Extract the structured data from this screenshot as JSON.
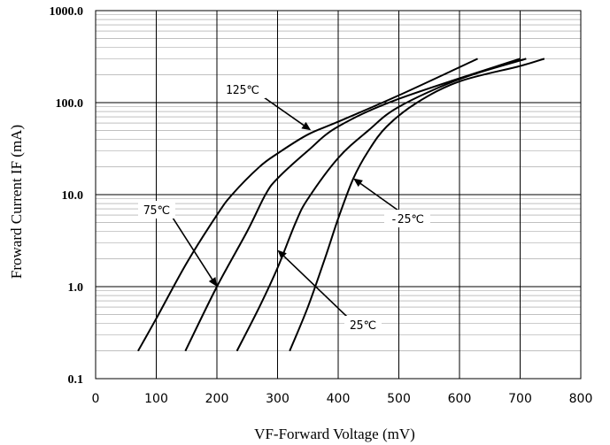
{
  "chart_data": {
    "type": "line",
    "title": "",
    "xlabel": "VF-Forward Voltage (mV)",
    "ylabel": "Froward Current IF (mA)",
    "xlim": [
      0,
      800
    ],
    "ylim": [
      0.1,
      1000
    ],
    "yscale": "log",
    "grid": true,
    "xticks": [
      0,
      100,
      200,
      300,
      400,
      500,
      600,
      700,
      800
    ],
    "xtick_labels": [
      "0",
      "100",
      "200",
      "300",
      "400",
      "500",
      "600",
      "700",
      "800"
    ],
    "yticks": [
      0.1,
      1,
      10,
      100,
      1000
    ],
    "ytick_labels": [
      "0.1",
      "1.0",
      "10.0",
      "100.0",
      "1000.0"
    ],
    "series": [
      {
        "name": "125°C",
        "x": [
          70,
          100,
          150,
          200,
          225,
          270,
          300,
          350,
          400,
          500,
          630
        ],
        "y": [
          0.2,
          0.45,
          1.8,
          6,
          10,
          20,
          28,
          45,
          62,
          120,
          300
        ]
      },
      {
        "name": "75°C",
        "x": [
          148,
          200,
          250,
          280,
          300,
          350,
          400,
          500,
          700
        ],
        "y": [
          0.2,
          1.0,
          4.0,
          10,
          15,
          30,
          55,
          110,
          300
        ]
      },
      {
        "name": "25°C",
        "x": [
          233,
          270,
          300,
          330,
          350,
          400,
          450,
          500,
          600,
          710
        ],
        "y": [
          0.2,
          0.6,
          1.6,
          5,
          9,
          25,
          50,
          90,
          180,
          300
        ]
      },
      {
        "name": "-25°C",
        "x": [
          320,
          350,
          380,
          400,
          425,
          450,
          480,
          530,
          600,
          700,
          740
        ],
        "y": [
          0.2,
          0.6,
          2.2,
          5.5,
          15,
          30,
          55,
          100,
          170,
          250,
          300
        ]
      }
    ],
    "annotations": [
      {
        "label": "125℃",
        "x": 355,
        "y": 50
      },
      {
        "label": "75℃",
        "x": 200,
        "y": 1.0
      },
      {
        "label": "25℃",
        "x": 300,
        "y": 2.5
      },
      {
        "label": "-25℃",
        "x": 425,
        "y": 15
      }
    ]
  }
}
